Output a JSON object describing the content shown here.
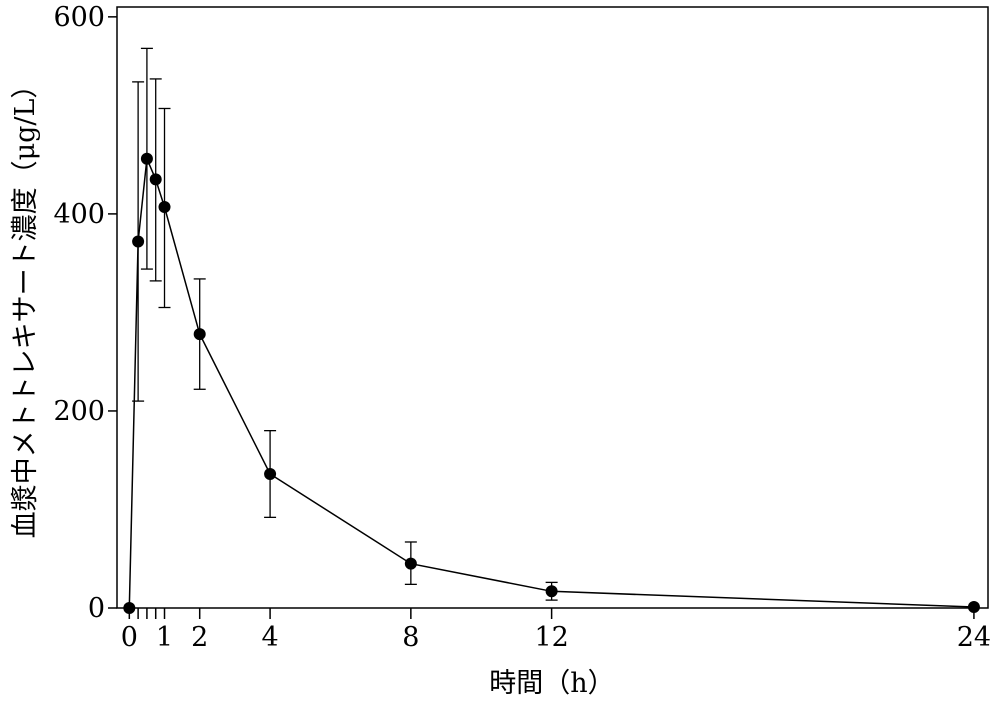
{
  "chart_data": {
    "type": "line",
    "xlabel": "時間（h）",
    "ylabel": "血漿中メトトレキサート濃度（μg/L）",
    "xlim": [
      -0.35,
      24.4
    ],
    "ylim": [
      0,
      610
    ],
    "x_ticks": [
      0,
      0.25,
      0.5,
      0.75,
      1,
      2,
      4,
      8,
      12,
      24
    ],
    "x_tick_labels": [
      {
        "x": 0,
        "label": "0"
      },
      {
        "x": 1,
        "label": "1"
      },
      {
        "x": 2,
        "label": "2"
      },
      {
        "x": 4,
        "label": "4"
      },
      {
        "x": 8,
        "label": "8"
      },
      {
        "x": 12,
        "label": "12"
      },
      {
        "x": 24,
        "label": "24"
      }
    ],
    "y_ticks": [
      0,
      200,
      400,
      600
    ],
    "y_tick_labels": [
      "0",
      "200",
      "400",
      "600"
    ],
    "grid": false,
    "series": [
      {
        "color": "#000000",
        "points": [
          {
            "x": 0,
            "y": 0,
            "err_low": null,
            "err_high": null
          },
          {
            "x": 0.25,
            "y": 372,
            "err_low": 210,
            "err_high": 534
          },
          {
            "x": 0.5,
            "y": 456,
            "err_low": 344,
            "err_high": 568
          },
          {
            "x": 0.75,
            "y": 435,
            "err_low": 332,
            "err_high": 537
          },
          {
            "x": 1,
            "y": 407,
            "err_low": 305,
            "err_high": 507
          },
          {
            "x": 2,
            "y": 278,
            "err_low": 222,
            "err_high": 334
          },
          {
            "x": 4,
            "y": 136,
            "err_low": 92,
            "err_high": 180
          },
          {
            "x": 8,
            "y": 45,
            "err_low": 24,
            "err_high": 67
          },
          {
            "x": 12,
            "y": 17,
            "err_low": 8,
            "err_high": 26
          },
          {
            "x": 24,
            "y": 1,
            "err_low": null,
            "err_high": null
          }
        ]
      }
    ]
  }
}
